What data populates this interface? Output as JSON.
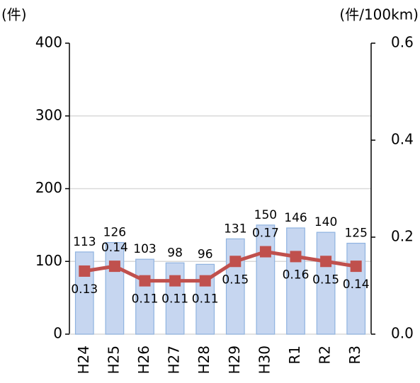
{
  "chart_data": {
    "type": "combo",
    "y_unit": "(件)",
    "y2_unit": "(件/100km)",
    "categories": [
      "H24",
      "H25",
      "H26",
      "H27",
      "H28",
      "H29",
      "H30",
      "R1",
      "R2",
      "R3"
    ],
    "series": [
      {
        "type": "bar",
        "axis": "y",
        "color": "#c6d6f0",
        "values": [
          113,
          126,
          103,
          98,
          96,
          131,
          150,
          146,
          140,
          125
        ]
      },
      {
        "type": "line",
        "axis": "y2",
        "color": "#c0504d",
        "values": [
          0.13,
          0.14,
          0.11,
          0.11,
          0.11,
          0.15,
          0.17,
          0.16,
          0.15,
          0.14
        ]
      }
    ],
    "ylim": [
      0,
      400
    ],
    "yticks": [
      0,
      100,
      200,
      300,
      400
    ],
    "y2lim": [
      0,
      0.6
    ],
    "y2ticks": [
      {
        "value": 0,
        "label": "0.0"
      },
      0.2,
      0.4,
      0.6
    ],
    "grid": true
  }
}
